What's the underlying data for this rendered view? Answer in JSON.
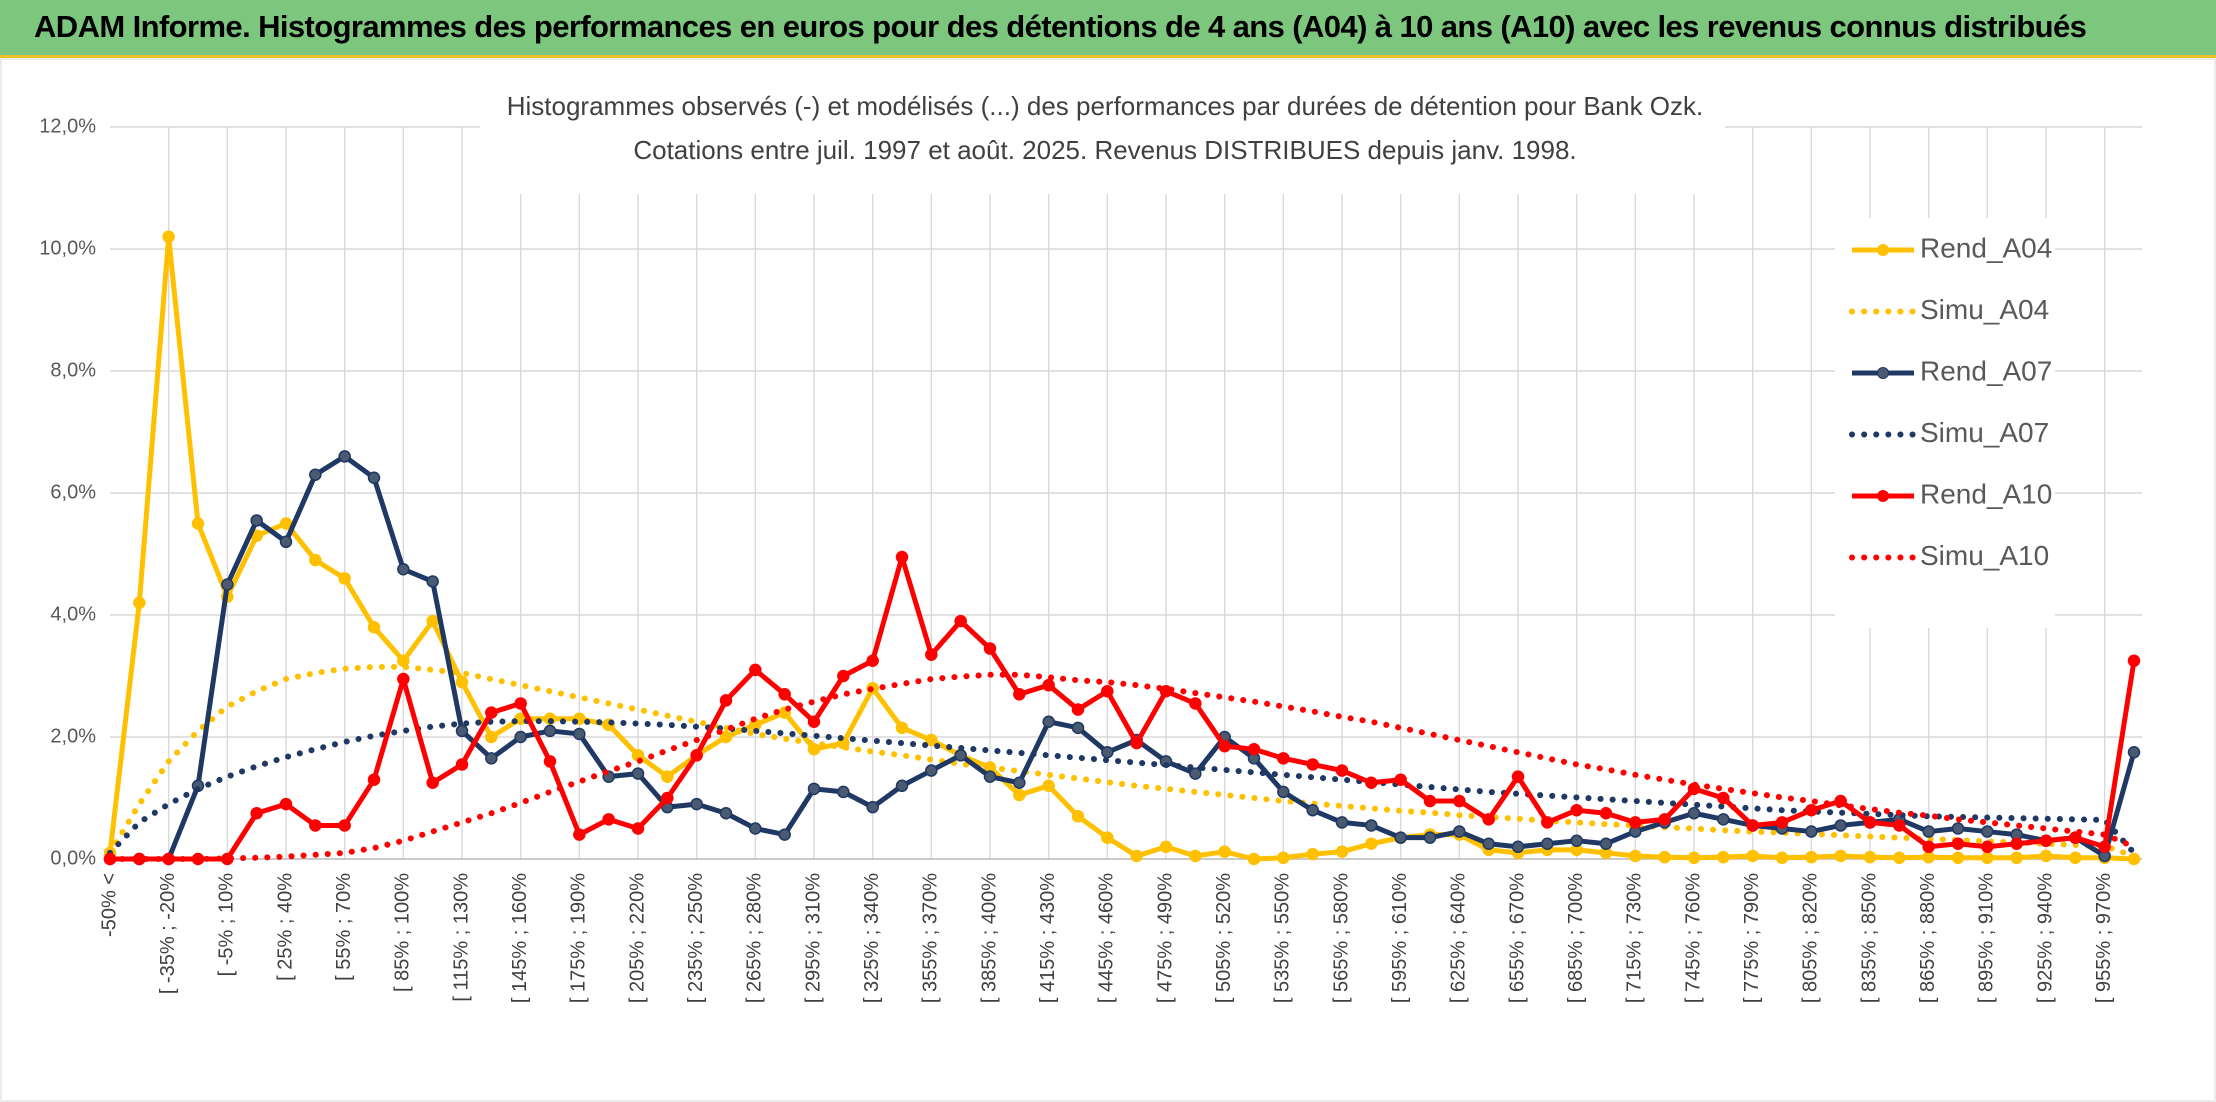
{
  "header": {
    "title": "ADAM Informe. Histogrammes des performances en euros pour des détentions de 4 ans (A04) à 10 ans (A10) avec les revenus connus distribués"
  },
  "chart_data": {
    "type": "line",
    "title": "Histogrammes observés (-) et modélisés (...) des performances par durées de détention pour Bank Ozk.",
    "subtitle": "Cotations entre juil. 1997 et août. 2025. Revenus DISTRIBUES depuis janv. 1998.",
    "categories": [
      "-50% <",
      null,
      "[ -35% ; -20%",
      null,
      "[ -5% ; 10%",
      null,
      "[ 25% ; 40%",
      null,
      "[ 55% ; 70%",
      null,
      "[ 85% ; 100%",
      null,
      "[ 115% ; 130%",
      null,
      "[ 145% ; 160%",
      null,
      "[ 175% ; 190%",
      null,
      "[ 205% ; 220%",
      null,
      "[ 235% ; 250%",
      null,
      "[ 265% ; 280%",
      null,
      "[ 295% ; 310%",
      null,
      "[ 325% ; 340%",
      null,
      "[ 355% ; 370%",
      null,
      "[ 385% ; 400%",
      null,
      "[ 415% ; 430%",
      null,
      "[ 445% ; 460%",
      null,
      "[ 475% ; 490%",
      null,
      "[ 505% ; 520%",
      null,
      "[ 535% ; 550%",
      null,
      "[ 565% ; 580%",
      null,
      "[ 595% ; 610%",
      null,
      "[ 625% ; 640%",
      null,
      "[ 655% ; 670%",
      null,
      "[ 685% ; 700%",
      null,
      "[ 715% ; 730%",
      null,
      "[ 745% ; 760%",
      null,
      "[ 775% ; 790%",
      null,
      "[ 805% ; 820%",
      null,
      "[ 835% ; 850%",
      null,
      "[ 865% ; 880%",
      null,
      "[ 895% ; 910%",
      null,
      "[ 925% ; 940%",
      null,
      "[ 955% ; 970%",
      null
    ],
    "series": [
      {
        "name": "Rend_A04",
        "color": "#ffc000",
        "style": "solid",
        "markers": true,
        "values": [
          0.1,
          4.2,
          10.2,
          5.5,
          4.3,
          5.3,
          5.5,
          4.9,
          4.6,
          3.8,
          3.25,
          3.9,
          2.9,
          2.0,
          2.3,
          2.3,
          2.3,
          2.2,
          1.7,
          1.35,
          1.7,
          2.0,
          2.2,
          2.4,
          1.8,
          1.9,
          2.8,
          2.15,
          1.95,
          1.7,
          1.5,
          1.05,
          1.2,
          0.7,
          0.35,
          0.05,
          0.2,
          0.05,
          0.12,
          0.0,
          0.02,
          0.08,
          0.12,
          0.25,
          0.35,
          0.4,
          0.4,
          0.15,
          0.1,
          0.15,
          0.15,
          0.1,
          0.05,
          0.03,
          0.02,
          0.03,
          0.05,
          0.02,
          0.03,
          0.05,
          0.03,
          0.02,
          0.03,
          0.02,
          0.02,
          0.02,
          0.05,
          0.02,
          0.02,
          0.0
        ]
      },
      {
        "name": "Simu_A04",
        "color": "#ffc000",
        "style": "dotted",
        "markers": false,
        "values": [
          0.1,
          0.9,
          1.6,
          2.1,
          2.5,
          2.75,
          2.95,
          3.05,
          3.12,
          3.15,
          3.15,
          3.1,
          3.05,
          2.95,
          2.85,
          2.75,
          2.65,
          2.55,
          2.45,
          2.35,
          2.25,
          2.15,
          2.05,
          1.97,
          1.9,
          1.83,
          1.76,
          1.7,
          1.63,
          1.56,
          1.5,
          1.44,
          1.38,
          1.32,
          1.26,
          1.2,
          1.15,
          1.1,
          1.05,
          1.0,
          0.95,
          0.91,
          0.87,
          0.83,
          0.79,
          0.76,
          0.72,
          0.69,
          0.66,
          0.63,
          0.6,
          0.57,
          0.55,
          0.52,
          0.5,
          0.47,
          0.45,
          0.43,
          0.41,
          0.39,
          0.37,
          0.35,
          0.33,
          0.31,
          0.29,
          0.27,
          0.25,
          0.23,
          0.21,
          0.05
        ]
      },
      {
        "name": "Rend_A07",
        "color": "#1f3864",
        "style": "solid",
        "markers": true,
        "values": [
          0,
          0,
          0,
          1.2,
          4.5,
          5.55,
          5.2,
          6.3,
          6.6,
          6.25,
          4.75,
          4.55,
          2.1,
          1.65,
          2.0,
          2.1,
          2.05,
          1.35,
          1.4,
          0.85,
          0.9,
          0.75,
          0.5,
          0.4,
          1.15,
          1.1,
          0.85,
          1.2,
          1.45,
          1.7,
          1.35,
          1.25,
          2.25,
          2.15,
          1.75,
          1.95,
          1.6,
          1.4,
          2.0,
          1.65,
          1.1,
          0.8,
          0.6,
          0.55,
          0.35,
          0.35,
          0.45,
          0.25,
          0.2,
          0.25,
          0.3,
          0.25,
          0.45,
          0.6,
          0.75,
          0.65,
          0.55,
          0.5,
          0.45,
          0.55,
          0.6,
          0.65,
          0.45,
          0.5,
          0.45,
          0.4,
          0.3,
          0.35,
          0.05,
          1.75
        ]
      },
      {
        "name": "Simu_A07",
        "color": "#1f3864",
        "style": "dotted",
        "markers": false,
        "values": [
          0.1,
          0.6,
          0.9,
          1.15,
          1.35,
          1.52,
          1.67,
          1.8,
          1.92,
          2.02,
          2.1,
          2.17,
          2.22,
          2.25,
          2.26,
          2.26,
          2.25,
          2.24,
          2.22,
          2.2,
          2.17,
          2.14,
          2.1,
          2.06,
          2.02,
          1.98,
          1.94,
          1.9,
          1.86,
          1.82,
          1.78,
          1.74,
          1.7,
          1.66,
          1.62,
          1.58,
          1.54,
          1.5,
          1.46,
          1.42,
          1.38,
          1.34,
          1.3,
          1.26,
          1.22,
          1.18,
          1.14,
          1.1,
          1.07,
          1.04,
          1.01,
          0.98,
          0.95,
          0.92,
          0.89,
          0.86,
          0.83,
          0.8,
          0.78,
          0.76,
          0.74,
          0.72,
          0.7,
          0.69,
          0.68,
          0.67,
          0.66,
          0.65,
          0.64,
          0.1
        ]
      },
      {
        "name": "Rend_A10",
        "color": "#ff0000",
        "style": "solid",
        "markers": true,
        "values": [
          0,
          0,
          0,
          0,
          0,
          0.75,
          0.9,
          0.55,
          0.55,
          1.3,
          2.95,
          1.25,
          1.55,
          2.4,
          2.55,
          1.6,
          0.4,
          0.65,
          0.5,
          1.0,
          1.7,
          2.6,
          3.1,
          2.7,
          2.25,
          3.0,
          3.25,
          4.95,
          3.35,
          3.9,
          3.45,
          2.7,
          2.85,
          2.45,
          2.75,
          1.9,
          2.75,
          2.55,
          1.85,
          1.8,
          1.65,
          1.55,
          1.45,
          1.25,
          1.3,
          0.95,
          0.95,
          0.65,
          1.35,
          0.6,
          0.8,
          0.75,
          0.6,
          0.65,
          1.15,
          1.0,
          0.55,
          0.6,
          0.8,
          0.95,
          0.6,
          0.55,
          0.2,
          0.25,
          0.2,
          0.25,
          0.3,
          0.35,
          0.2,
          3.25
        ]
      },
      {
        "name": "Simu_A10",
        "color": "#ff0000",
        "style": "dotted",
        "markers": false,
        "values": [
          0,
          0,
          0,
          0,
          0.01,
          0.02,
          0.04,
          0.07,
          0.1,
          0.18,
          0.3,
          0.45,
          0.6,
          0.75,
          0.92,
          1.1,
          1.27,
          1.44,
          1.6,
          1.78,
          1.95,
          2.12,
          2.3,
          2.45,
          2.58,
          2.7,
          2.79,
          2.87,
          2.95,
          2.99,
          3.02,
          3.02,
          2.98,
          2.93,
          2.9,
          2.85,
          2.79,
          2.72,
          2.65,
          2.58,
          2.5,
          2.42,
          2.33,
          2.25,
          2.15,
          2.05,
          1.95,
          1.85,
          1.75,
          1.65,
          1.55,
          1.47,
          1.38,
          1.3,
          1.22,
          1.15,
          1.08,
          1.01,
          0.95,
          0.88,
          0.82,
          0.76,
          0.71,
          0.65,
          0.6,
          0.55,
          0.5,
          0.45,
          0.4,
          0.2
        ]
      }
    ],
    "ylim": [
      0,
      12
    ],
    "yticks": [
      {
        "value": 0,
        "label": "0,0%"
      },
      {
        "value": 2,
        "label": "2,0%"
      },
      {
        "value": 4,
        "label": "4,0%"
      },
      {
        "value": 6,
        "label": "6,0%"
      },
      {
        "value": 8,
        "label": "8,0%"
      },
      {
        "value": 10,
        "label": "10,0%"
      },
      {
        "value": 12,
        "label": "12,0%"
      }
    ],
    "grid": true,
    "legend": "right"
  }
}
